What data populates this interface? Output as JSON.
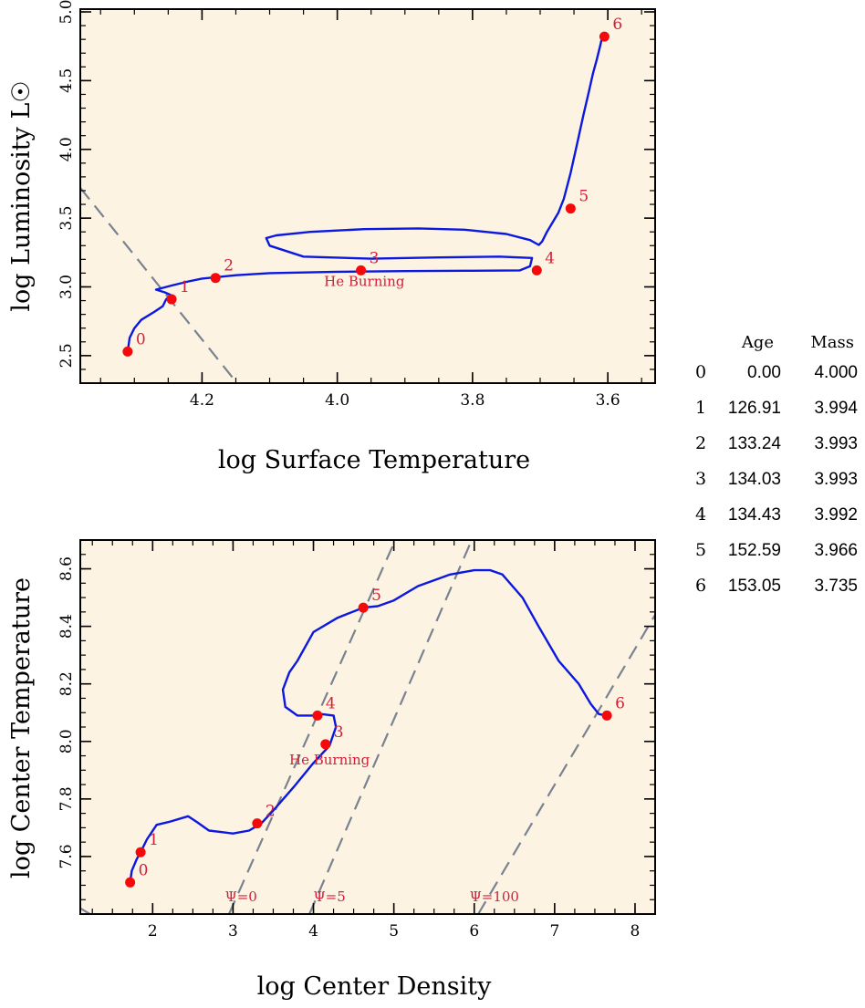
{
  "colors": {
    "panel_bg": "#fcf3e3",
    "track": "#0b18e0",
    "marker": "#f40a0a",
    "label": "#d0203a",
    "dashed": "#7a8290",
    "frame": "#000000"
  },
  "table": {
    "headers": [
      "",
      "Age",
      "Mass"
    ],
    "rows": [
      [
        "0",
        "0.00",
        "4.000"
      ],
      [
        "1",
        "126.91",
        "3.994"
      ],
      [
        "2",
        "133.24",
        "3.993"
      ],
      [
        "3",
        "134.03",
        "3.993"
      ],
      [
        "4",
        "134.43",
        "3.992"
      ],
      [
        "5",
        "152.59",
        "3.966"
      ],
      [
        "6",
        "153.05",
        "3.735"
      ]
    ]
  },
  "chart_data": [
    {
      "type": "line",
      "xlabel": "log Surface Temperature",
      "ylabel": "log Luminosity L☉",
      "xlim": [
        4.38,
        3.53
      ],
      "ylim": [
        2.3,
        5.02
      ],
      "x_reversed": true,
      "xticks": [
        "4.2",
        "4.0",
        "3.8",
        "3.6"
      ],
      "xtick_values": [
        4.2,
        4.0,
        3.8,
        3.6
      ],
      "yticks": [
        "2.5",
        "3.0",
        "3.5",
        "4.0",
        "4.5",
        "5.0"
      ],
      "ytick_values": [
        2.5,
        3.0,
        3.5,
        4.0,
        4.5,
        5.0
      ],
      "track": {
        "x": [
          4.31,
          4.307,
          4.3,
          4.29,
          4.27,
          4.258,
          4.253,
          4.246,
          4.255,
          4.268,
          4.245,
          4.22,
          4.2,
          4.15,
          4.1,
          4.0,
          3.9,
          3.8,
          3.73,
          3.715,
          3.712,
          3.76,
          3.85,
          3.95,
          4.05,
          4.1,
          4.105,
          4.09,
          4.04,
          3.96,
          3.88,
          3.81,
          3.75,
          3.715,
          3.702,
          3.697,
          3.69,
          3.673,
          3.665,
          3.655,
          3.645,
          3.636,
          3.628,
          3.622,
          3.616,
          3.611,
          3.609,
          3.608
        ],
        "y": [
          2.53,
          2.63,
          2.7,
          2.76,
          2.82,
          2.86,
          2.91,
          2.94,
          2.96,
          2.98,
          3.01,
          3.04,
          3.06,
          3.085,
          3.1,
          3.11,
          3.115,
          3.117,
          3.12,
          3.15,
          3.21,
          3.22,
          3.214,
          3.205,
          3.22,
          3.3,
          3.355,
          3.375,
          3.4,
          3.42,
          3.425,
          3.415,
          3.385,
          3.34,
          3.305,
          3.33,
          3.4,
          3.54,
          3.64,
          3.83,
          4.05,
          4.25,
          4.42,
          4.55,
          4.66,
          4.76,
          4.8,
          4.82
        ]
      },
      "guide_line": {
        "x": [
          4.38,
          4.14
        ],
        "y": [
          3.72,
          2.25
        ]
      },
      "points": [
        {
          "label": "0",
          "x": 4.31,
          "y": 2.53
        },
        {
          "label": "1",
          "x": 4.245,
          "y": 2.91
        },
        {
          "label": "2",
          "x": 4.18,
          "y": 3.065
        },
        {
          "label": "3",
          "x": 3.965,
          "y": 3.12
        },
        {
          "label": "4",
          "x": 3.705,
          "y": 3.12
        },
        {
          "label": "5",
          "x": 3.655,
          "y": 3.57
        },
        {
          "label": "6",
          "x": 3.605,
          "y": 4.82
        }
      ],
      "annotations": [
        {
          "text": "He Burning",
          "x": 3.96,
          "y": 3.005
        }
      ]
    },
    {
      "type": "line",
      "xlabel": "log Center Density",
      "ylabel": "log Center Temperature",
      "xlim": [
        1.1,
        8.25
      ],
      "ylim": [
        7.4,
        8.7
      ],
      "xticks": [
        "2",
        "3",
        "4",
        "5",
        "6",
        "7",
        "8"
      ],
      "xtick_values": [
        2,
        3,
        4,
        5,
        6,
        7,
        8
      ],
      "yticks": [
        "7.6",
        "7.8",
        "8.0",
        "8.2",
        "8.4",
        "8.6"
      ],
      "ytick_values": [
        7.6,
        7.8,
        8.0,
        8.2,
        8.4,
        8.6
      ],
      "track": {
        "x": [
          1.72,
          1.74,
          1.8,
          1.85,
          1.93,
          2.05,
          2.2,
          2.44,
          2.55,
          2.7,
          2.85,
          3.0,
          3.2,
          3.35,
          3.5,
          3.75,
          4.0,
          4.2,
          4.28,
          4.25,
          4.1,
          4.0,
          3.8,
          3.65,
          3.62,
          3.7,
          3.8,
          4.0,
          4.3,
          4.62,
          4.8,
          5.0,
          5.3,
          5.7,
          6.0,
          6.2,
          6.35,
          6.6,
          6.8,
          7.05,
          7.3,
          7.45,
          7.55,
          7.65
        ],
        "y": [
          7.51,
          7.55,
          7.59,
          7.615,
          7.66,
          7.71,
          7.72,
          7.74,
          7.72,
          7.69,
          7.685,
          7.68,
          7.69,
          7.715,
          7.76,
          7.84,
          7.925,
          7.985,
          8.05,
          8.09,
          8.095,
          8.09,
          8.09,
          8.12,
          8.18,
          8.24,
          8.28,
          8.38,
          8.43,
          8.465,
          8.47,
          8.49,
          8.54,
          8.58,
          8.595,
          8.595,
          8.58,
          8.5,
          8.4,
          8.28,
          8.2,
          8.13,
          8.095,
          8.09
        ]
      },
      "guide_lines": [
        {
          "label": "Ψ=0",
          "x": [
            1.1,
            1.22
          ],
          "y": [
            7.42,
            7.4
          ]
        },
        {
          "label": "Ψ=0",
          "x": [
            2.95,
            5.05
          ],
          "y": [
            7.4,
            8.72
          ]
        },
        {
          "label": "Ψ=5",
          "x": [
            3.95,
            6.0
          ],
          "y": [
            7.4,
            8.72
          ]
        },
        {
          "label": "Ψ=100",
          "x": [
            6.05,
            8.25
          ],
          "y": [
            7.4,
            8.44
          ]
        }
      ],
      "points": [
        {
          "label": "0",
          "x": 1.72,
          "y": 7.51
        },
        {
          "label": "1",
          "x": 1.85,
          "y": 7.615
        },
        {
          "label": "2",
          "x": 3.3,
          "y": 7.715
        },
        {
          "label": "3",
          "x": 4.15,
          "y": 7.99
        },
        {
          "label": "4",
          "x": 4.05,
          "y": 8.09
        },
        {
          "label": "5",
          "x": 4.62,
          "y": 8.465
        },
        {
          "label": "6",
          "x": 7.65,
          "y": 8.09
        }
      ],
      "annotations": [
        {
          "text": "He Burning",
          "x": 4.2,
          "y": 7.92
        },
        {
          "text": "Ψ=0",
          "x": 3.1,
          "y": 7.445
        },
        {
          "text": "Ψ=5",
          "x": 4.2,
          "y": 7.445
        },
        {
          "text": "Ψ=100",
          "x": 6.25,
          "y": 7.445
        }
      ]
    }
  ]
}
